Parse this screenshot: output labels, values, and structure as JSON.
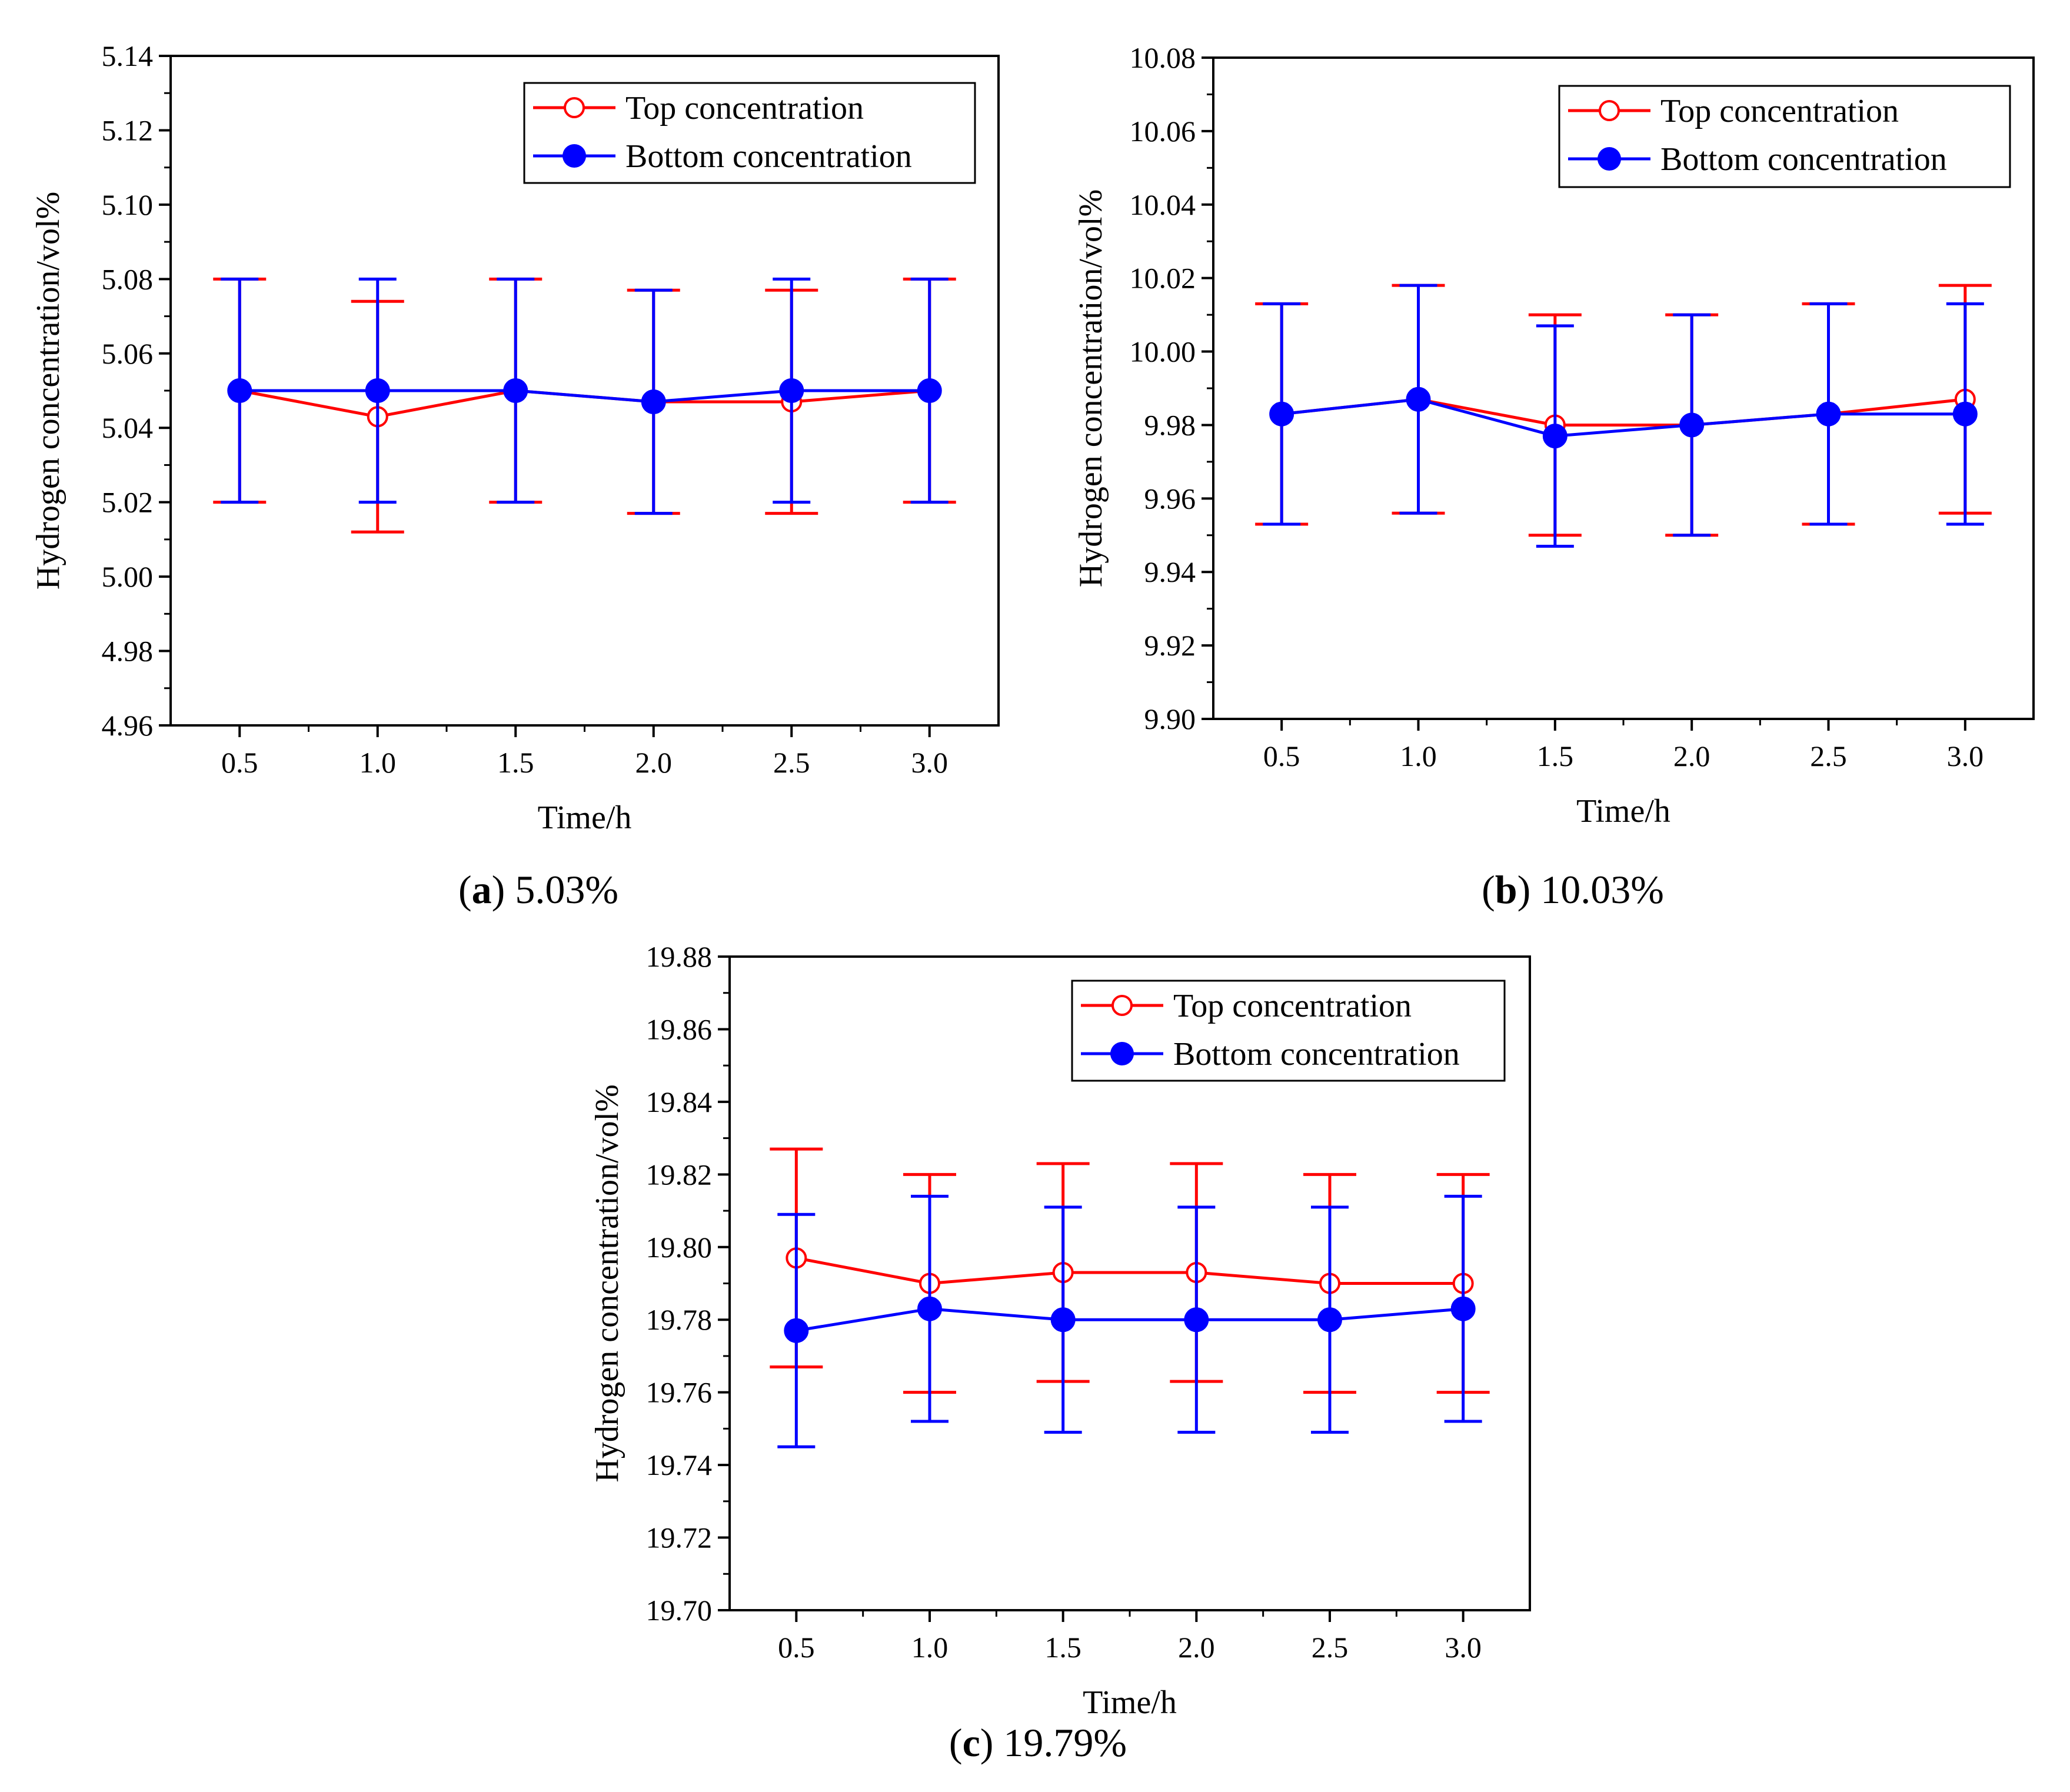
{
  "chart_data": [
    {
      "type": "line",
      "panel_letter": "a",
      "panel_value": "5.03%",
      "xlabel": "Time/h",
      "ylabel": "Hydrogen concentration/vol%",
      "x": [
        0.5,
        1.0,
        1.5,
        2.0,
        2.5,
        3.0
      ],
      "x_tick_labels": [
        "0.5",
        "1.0",
        "1.5",
        "2.0",
        "2.5",
        "3.0"
      ],
      "xlim": [
        0.25,
        3.25
      ],
      "ylim": [
        4.96,
        5.14
      ],
      "y_ticks": [
        "4.96",
        "4.98",
        "5.00",
        "5.02",
        "5.04",
        "5.06",
        "5.08",
        "5.10",
        "5.12",
        "5.14"
      ],
      "legend_position": "top-right",
      "series": [
        {
          "name": "Top concentration",
          "color": "#ff0000",
          "marker": "open-circle",
          "values": [
            5.05,
            5.043,
            5.05,
            5.047,
            5.047,
            5.05
          ],
          "errors": [
            0.03,
            0.031,
            0.03,
            0.03,
            0.03,
            0.03
          ]
        },
        {
          "name": "Bottom concentration",
          "color": "#0000ff",
          "marker": "filled-circle",
          "values": [
            5.05,
            5.05,
            5.05,
            5.047,
            5.05,
            5.05
          ],
          "errors": [
            0.03,
            0.03,
            0.03,
            0.03,
            0.03,
            0.03
          ]
        }
      ]
    },
    {
      "type": "line",
      "panel_letter": "b",
      "panel_value": "10.03%",
      "xlabel": "Time/h",
      "ylabel": "Hydrogen concentration/vol%",
      "x": [
        0.5,
        1.0,
        1.5,
        2.0,
        2.5,
        3.0
      ],
      "x_tick_labels": [
        "0.5",
        "1.0",
        "1.5",
        "2.0",
        "2.5",
        "3.0"
      ],
      "xlim": [
        0.25,
        3.25
      ],
      "ylim": [
        9.9,
        10.08
      ],
      "y_ticks": [
        "9.90",
        "9.92",
        "9.94",
        "9.96",
        "9.98",
        "10.00",
        "10.02",
        "10.04",
        "10.06",
        "10.08"
      ],
      "legend_position": "top-right",
      "series": [
        {
          "name": "Top concentration",
          "color": "#ff0000",
          "marker": "open-circle",
          "values": [
            9.983,
            9.987,
            9.98,
            9.98,
            9.983,
            9.987
          ],
          "errors": [
            0.03,
            0.031,
            0.03,
            0.03,
            0.03,
            0.031
          ]
        },
        {
          "name": "Bottom concentration",
          "color": "#0000ff",
          "marker": "filled-circle",
          "values": [
            9.983,
            9.987,
            9.977,
            9.98,
            9.983,
            9.983
          ],
          "errors": [
            0.03,
            0.031,
            0.03,
            0.03,
            0.03,
            0.03
          ]
        }
      ]
    },
    {
      "type": "line",
      "panel_letter": "c",
      "panel_value": "19.79%",
      "xlabel": "Time/h",
      "ylabel": "Hydrogen concentration/vol%",
      "x": [
        0.5,
        1.0,
        1.5,
        2.0,
        2.5,
        3.0
      ],
      "x_tick_labels": [
        "0.5",
        "1.0",
        "1.5",
        "2.0",
        "2.5",
        "3.0"
      ],
      "xlim": [
        0.25,
        3.25
      ],
      "ylim": [
        19.7,
        19.88
      ],
      "y_ticks": [
        "19.70",
        "19.72",
        "19.74",
        "19.76",
        "19.78",
        "19.80",
        "19.82",
        "19.84",
        "19.86",
        "19.88"
      ],
      "legend_position": "top-right",
      "series": [
        {
          "name": "Top concentration",
          "color": "#ff0000",
          "marker": "open-circle",
          "values": [
            19.797,
            19.79,
            19.793,
            19.793,
            19.79,
            19.79
          ],
          "errors": [
            0.03,
            0.03,
            0.03,
            0.03,
            0.03,
            0.03
          ]
        },
        {
          "name": "Bottom concentration",
          "color": "#0000ff",
          "marker": "filled-circle",
          "values": [
            19.777,
            19.783,
            19.78,
            19.78,
            19.78,
            19.783
          ],
          "errors": [
            0.032,
            0.031,
            0.031,
            0.031,
            0.031,
            0.031
          ]
        }
      ]
    }
  ]
}
